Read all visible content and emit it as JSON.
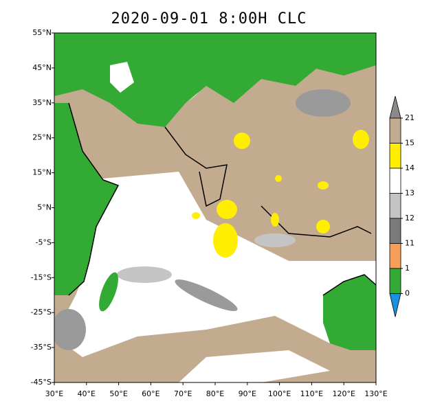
{
  "map": {
    "title": "2020-09-01 8:00H CLC",
    "xlim": [
      30,
      130
    ],
    "ylim": [
      -45,
      55
    ],
    "xticks": [
      {
        "value": 30,
        "label": "30°E"
      },
      {
        "value": 40,
        "label": "40°E"
      },
      {
        "value": 50,
        "label": "50°E"
      },
      {
        "value": 60,
        "label": "60°E"
      },
      {
        "value": 70,
        "label": "70°E"
      },
      {
        "value": 80,
        "label": "80°E"
      },
      {
        "value": 90,
        "label": "90°E"
      },
      {
        "value": 100,
        "label": "100°E"
      },
      {
        "value": 110,
        "label": "110°E"
      },
      {
        "value": 120,
        "label": "120°E"
      },
      {
        "value": 130,
        "label": "130°E"
      }
    ],
    "yticks": [
      {
        "value": 55,
        "label": "55°N"
      },
      {
        "value": 45,
        "label": "45°N"
      },
      {
        "value": 35,
        "label": "35°N"
      },
      {
        "value": 25,
        "label": "25°N"
      },
      {
        "value": 15,
        "label": "15°N"
      },
      {
        "value": 5,
        "label": "5°N"
      },
      {
        "value": -5,
        "label": "-5°S"
      },
      {
        "value": -15,
        "label": "-15°S"
      },
      {
        "value": -25,
        "label": "-25°S"
      },
      {
        "value": -35,
        "label": "-35°S"
      },
      {
        "value": -45,
        "label": "-45°S"
      }
    ],
    "colorbar": {
      "levels": [
        21,
        15,
        14,
        13,
        12,
        11,
        1,
        0
      ],
      "colors": [
        "#8a8a8a",
        "#c2ab8e",
        "#ffee00",
        "#ffffff",
        "#c4c4c4",
        "#7a7a7a",
        "#f5a05a",
        "#33aa33",
        "#1a90e0"
      ]
    }
  }
}
